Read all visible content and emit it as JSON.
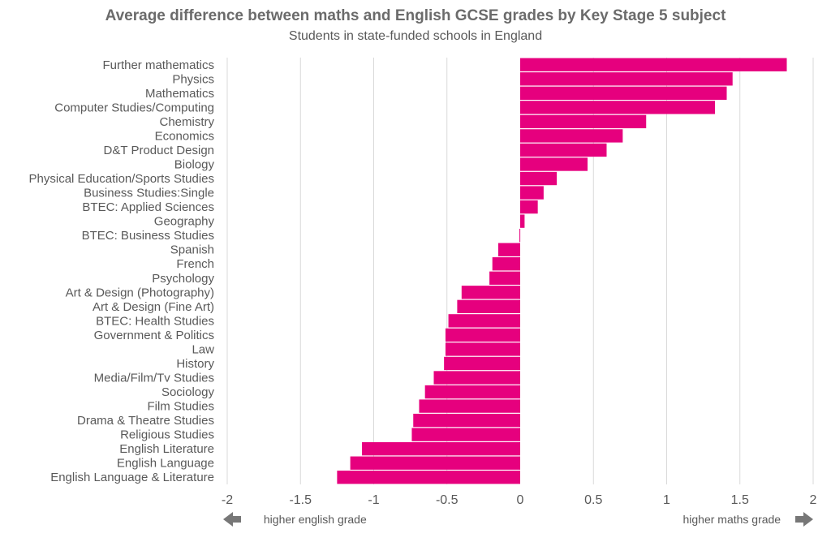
{
  "chart_data": {
    "type": "bar",
    "orientation": "horizontal",
    "title": "Average difference between maths and English GCSE grades by Key Stage 5 subject",
    "subtitle": "Students in state-funded schools in England",
    "categories": [
      "Further mathematics",
      "Physics",
      "Mathematics",
      "Computer Studies/Computing",
      "Chemistry",
      "Economics",
      "D&T Product Design",
      "Biology",
      "Physical Education/Sports Studies",
      "Business Studies:Single",
      "BTEC: Applied Sciences",
      "Geography",
      "BTEC: Business Studies",
      "Spanish",
      "French",
      "Psychology",
      "Art & Design (Photography)",
      "Art & Design (Fine Art)",
      "BTEC: Health Studies",
      "Government & Politics",
      "Law",
      "History",
      "Media/Film/Tv Studies",
      "Sociology",
      "Film Studies",
      "Drama & Theatre Studies",
      "Religious Studies",
      "English Literature",
      "English Language",
      "English Language & Literature"
    ],
    "values": [
      1.82,
      1.45,
      1.41,
      1.33,
      0.86,
      0.7,
      0.59,
      0.46,
      0.25,
      0.16,
      0.12,
      0.03,
      -0.005,
      -0.15,
      -0.19,
      -0.21,
      -0.4,
      -0.43,
      -0.49,
      -0.51,
      -0.51,
      -0.52,
      -0.59,
      -0.65,
      -0.69,
      -0.73,
      -0.74,
      -1.08,
      -1.16,
      -1.25
    ],
    "xlim": [
      -2,
      2
    ],
    "xticks": [
      -2,
      -1.5,
      -1,
      -0.5,
      0,
      0.5,
      1,
      1.5,
      2
    ],
    "xtick_labels": [
      "-2",
      "-1.5",
      "-1",
      "-0.5",
      "0",
      "0.5",
      "1",
      "1.5",
      "2"
    ],
    "grid": true,
    "bar_color": "#e6007e",
    "grid_color": "#d9d9d9"
  },
  "footer": {
    "left_label": "higher english grade",
    "right_label": "higher maths grade",
    "arrow_color": "#777777"
  }
}
